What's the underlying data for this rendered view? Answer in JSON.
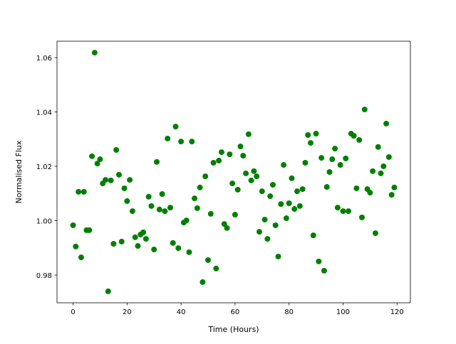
{
  "chart_data": {
    "type": "scatter",
    "x_label": "Time (Hours)",
    "y_label": "Normalised Flux",
    "color": "#008000",
    "x": [
      0,
      1,
      2,
      3,
      4,
      5,
      6,
      7,
      8,
      9,
      10,
      11,
      12,
      13,
      14,
      15,
      16,
      17,
      18,
      19,
      20,
      21,
      22,
      23,
      24,
      25,
      26,
      27,
      28,
      29,
      30,
      31,
      32,
      33,
      34,
      35,
      36,
      37,
      38,
      39,
      40,
      41,
      42,
      43,
      44,
      45,
      46,
      47,
      48,
      49,
      50,
      51,
      52,
      53,
      54,
      55,
      56,
      57,
      58,
      59,
      60,
      61,
      62,
      63,
      64,
      65,
      66,
      67,
      68,
      69,
      70,
      71,
      72,
      73,
      74,
      75,
      76,
      77,
      78,
      79,
      80,
      81,
      82,
      83,
      84,
      85,
      86,
      87,
      88,
      89,
      90,
      91,
      92,
      93,
      94,
      95,
      96,
      97,
      98,
      99,
      100,
      101,
      102,
      103,
      104,
      105,
      106,
      107,
      108,
      109,
      110,
      111,
      112,
      113,
      114,
      115,
      116,
      117,
      118,
      119
    ],
    "values": [
      0.9983,
      0.9905,
      1.0106,
      0.9865,
      1.0106,
      0.9965,
      0.9965,
      1.0237,
      1.0618,
      1.021,
      1.0226,
      1.0137,
      1.015,
      0.974,
      1.0148,
      0.9915,
      1.026,
      1.0169,
      0.9923,
      1.0119,
      1.0072,
      1.015,
      1.0035,
      0.9939,
      0.9907,
      0.9949,
      0.9957,
      0.9933,
      1.0088,
      1.0054,
      0.9894,
      1.0216,
      1.0041,
      1.0098,
      1.0035,
      1.0302,
      1.0048,
      0.9918,
      1.0346,
      0.9899,
      1.0291,
      0.9993,
      1.0001,
      0.9884,
      1.0291,
      1.0082,
      1.0046,
      1.0122,
      0.9774,
      1.0163,
      0.9855,
      1.0025,
      1.0213,
      0.9824,
      1.0221,
      1.0252,
      0.9988,
      0.9973,
      1.0244,
      1.0137,
      1.0022,
      1.0114,
      1.0273,
      1.0239,
      1.0174,
      1.0318,
      1.0148,
      1.0182,
      1.0163,
      0.9959,
      1.0108,
      1.0004,
      0.9933,
      1.009,
      1.0132,
      0.9983,
      0.9868,
      1.0061,
      1.0205,
      1.0009,
      1.0064,
      1.0156,
      1.0043,
      1.0108,
      1.0054,
      1.0116,
      1.0213,
      1.0315,
      1.0286,
      0.9946,
      1.032,
      0.985,
      1.0231,
      0.9816,
      1.0124,
      1.0179,
      1.0226,
      1.0265,
      1.0048,
      1.0205,
      1.0035,
      1.0229,
      1.0035,
      1.032,
      1.0312,
      1.0119,
      1.0297,
      1.0012,
      1.0409,
      1.0116,
      1.0103,
      1.0182,
      0.9954,
      1.0271,
      1.0174,
      1.02,
      1.0357,
      1.0234,
      1.0095,
      1.0122
    ],
    "xlim": [
      -5.95,
      124.95
    ],
    "ylim": [
      0.9698,
      1.066
    ],
    "xticks": [
      0,
      20,
      40,
      60,
      80,
      100,
      120
    ],
    "yticks": [
      0.98,
      {
        "value": 1,
        "label": "1.00"
      },
      1.02,
      1.04,
      1.06
    ]
  }
}
